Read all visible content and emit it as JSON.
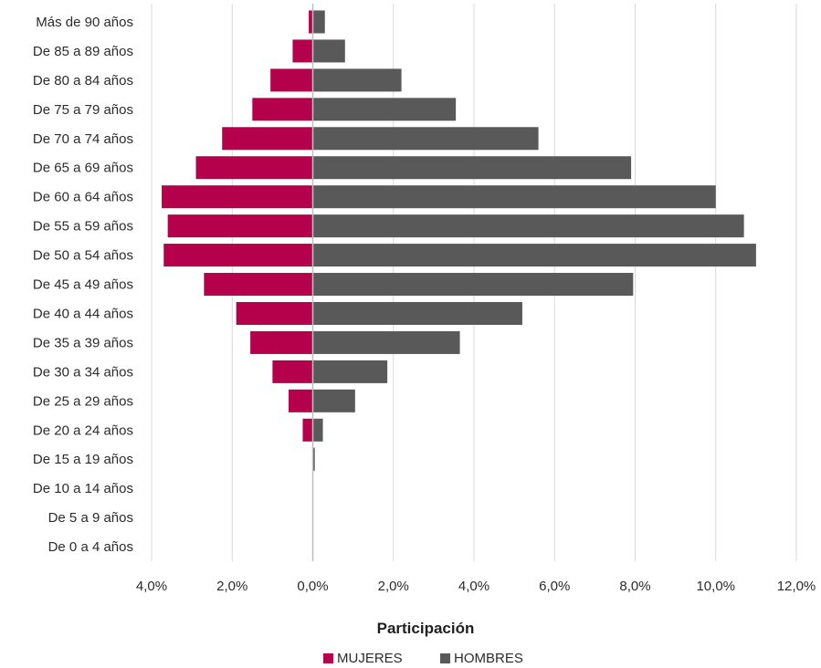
{
  "chart_data": {
    "type": "bar",
    "orientation": "horizontal",
    "subtype": "population-pyramid",
    "categories": [
      "Más de 90 años",
      "De 85 a 89 años",
      "De 80 a 84 años",
      "De 75 a 79 años",
      "De 70 a 74 años",
      "De 65 a 69 años",
      "De 60 a 64 años",
      "De 55 a 59 años",
      "De 50 a 54 años",
      "De 45 a 49 años",
      "De 40 a 44 años",
      "De 35 a 39 años",
      "De 30 a 34 años",
      "De 25 a 29 años",
      "De 20 a 24 años",
      "De 15 a 19 años",
      "De 10 a 14 años",
      "De 5 a 9 años",
      "De 0 a 4 años"
    ],
    "series": [
      {
        "name": "MUJERES",
        "color": "#b5004b",
        "side": "left",
        "values": [
          0.1,
          0.5,
          1.05,
          1.5,
          2.25,
          2.9,
          3.75,
          3.6,
          3.7,
          2.7,
          1.9,
          1.55,
          1.0,
          0.6,
          0.25,
          0.0,
          0.0,
          0.0,
          0.0
        ]
      },
      {
        "name": "HOMBRES",
        "color": "#595959",
        "side": "right",
        "values": [
          0.3,
          0.8,
          2.2,
          3.55,
          5.6,
          7.9,
          10.0,
          10.7,
          11.0,
          7.95,
          5.2,
          3.65,
          1.85,
          1.05,
          0.25,
          0.05,
          0.0,
          0.0,
          0.0
        ]
      }
    ],
    "x_ticks": [
      "4,0%",
      "2,0%",
      "0,0%",
      "2,0%",
      "4,0%",
      "6,0%",
      "8,0%",
      "10,0%",
      "12,0%"
    ],
    "xlim": [
      -4,
      12
    ],
    "xlabel": "Participación",
    "ylabel": "",
    "grid": "vertical",
    "legend_position": "bottom"
  }
}
